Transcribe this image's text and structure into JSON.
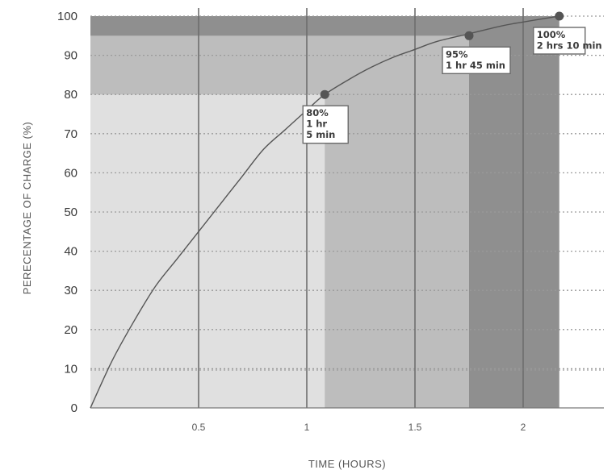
{
  "chart_data": {
    "type": "line",
    "title": "",
    "xlabel": "TIME (HOURS)",
    "ylabel": "PERECENTAGE OF CHARGE (%)",
    "xlim": [
      0,
      2.35
    ],
    "ylim": [
      0,
      100
    ],
    "x_ticks": [
      0.5,
      1,
      1.5,
      2
    ],
    "x_tick_labels": [
      "0.5",
      "1",
      "1.5",
      "2"
    ],
    "y_ticks": [
      0,
      10,
      20,
      30,
      40,
      50,
      60,
      70,
      80,
      90,
      100
    ],
    "y_tick_labels": [
      "0",
      "10",
      "20",
      "30",
      "40",
      "50",
      "60",
      "70",
      "80",
      "90",
      "100"
    ],
    "grid": {
      "vertical": "solid",
      "horizontal": "dotted"
    },
    "series": [
      {
        "x": [
          0,
          0.1,
          0.2,
          0.3,
          0.4,
          0.5,
          0.6,
          0.7,
          0.8,
          0.9,
          1.0,
          1.083,
          1.2,
          1.3,
          1.4,
          1.5,
          1.6,
          1.75,
          1.9,
          2.0,
          2.167
        ],
        "values": [
          0,
          12,
          22,
          31,
          38,
          45,
          52,
          59,
          66,
          71,
          76,
          80,
          84,
          87,
          89.5,
          91.5,
          93.5,
          95.5,
          97.5,
          98.5,
          100
        ]
      }
    ],
    "shaded_regions": [
      {
        "x_end": 1.083,
        "y_top": 80,
        "color": "#e0e0e0"
      },
      {
        "x_end": 1.75,
        "y_top": 95,
        "color": "#bdbdbd"
      },
      {
        "x_end": 2.167,
        "y_top": 100,
        "color": "#8f8f8f"
      }
    ],
    "highlighted_points": [
      {
        "x": 1.083,
        "y": 80,
        "lines": [
          "80%",
          "1 hr",
          "5 min"
        ]
      },
      {
        "x": 1.75,
        "y": 95,
        "lines": [
          "95%",
          "1 hr 45 min"
        ]
      },
      {
        "x": 2.167,
        "y": 100,
        "lines": [
          "100%",
          "2 hrs 10 min"
        ]
      }
    ],
    "colors": {
      "line": "#555555",
      "point": "#555555",
      "grid_vertical": "#6e6e6e",
      "grid_horizontal": "#9a9a9a"
    }
  }
}
